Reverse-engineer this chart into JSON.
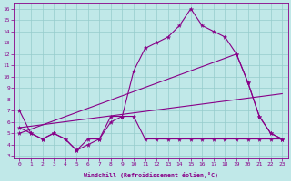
{
  "bg_color": "#c0e8e8",
  "line_color": "#880088",
  "grid_color": "#96cccc",
  "xlabel": "Windchill (Refroidissement éolien,°C)",
  "xlim_min": -0.5,
  "xlim_max": 23.5,
  "ylim_min": 2.8,
  "ylim_max": 16.5,
  "xticks": [
    0,
    1,
    2,
    3,
    4,
    5,
    6,
    7,
    8,
    9,
    10,
    11,
    12,
    13,
    14,
    15,
    16,
    17,
    18,
    19,
    20,
    21,
    22,
    23
  ],
  "yticks": [
    3,
    4,
    5,
    6,
    7,
    8,
    9,
    10,
    11,
    12,
    13,
    14,
    15,
    16
  ],
  "line1_x": [
    0,
    1,
    2,
    3,
    4,
    5,
    6,
    7,
    8,
    9,
    10,
    11,
    12,
    13,
    14,
    15,
    16,
    17,
    18,
    19,
    20,
    21,
    22,
    23
  ],
  "line1_y": [
    7.0,
    5.0,
    4.5,
    5.0,
    4.5,
    3.5,
    4.0,
    4.5,
    6.0,
    6.5,
    10.5,
    12.5,
    13.0,
    13.5,
    14.5,
    16.0,
    14.5,
    14.0,
    13.5,
    12.0,
    9.5,
    6.5,
    5.0,
    4.5
  ],
  "line2_x": [
    0,
    1,
    2,
    3,
    4,
    5,
    6,
    7,
    8,
    9,
    10,
    11,
    12,
    13,
    14,
    15,
    16,
    17,
    18,
    19,
    20,
    21,
    22,
    23
  ],
  "line2_y": [
    5.5,
    5.0,
    4.5,
    5.0,
    4.5,
    3.5,
    4.5,
    4.5,
    6.5,
    6.5,
    6.5,
    4.5,
    4.5,
    4.5,
    4.5,
    4.5,
    4.5,
    4.5,
    4.5,
    4.5,
    4.5,
    4.5,
    4.5,
    4.5
  ],
  "line3_x": [
    0,
    19,
    20,
    21,
    22,
    23
  ],
  "line3_y": [
    5.0,
    12.0,
    9.5,
    6.5,
    5.0,
    4.5
  ],
  "line4_x": [
    0,
    23
  ],
  "line4_y": [
    5.5,
    8.5
  ]
}
